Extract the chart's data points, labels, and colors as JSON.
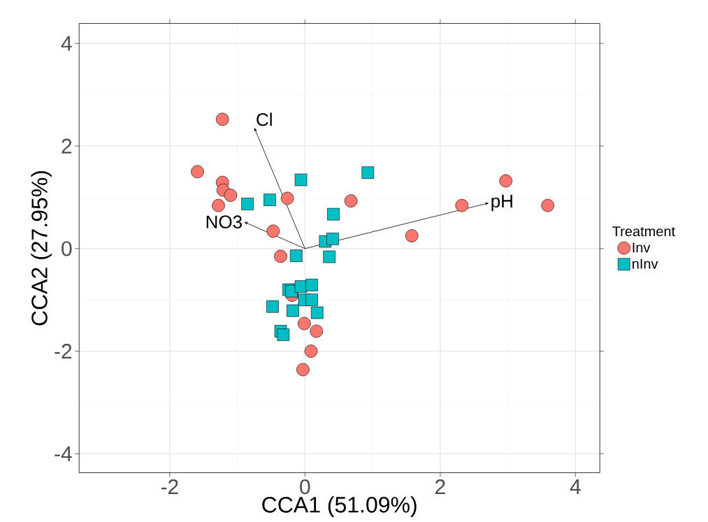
{
  "chart_data": {
    "type": "scatter",
    "xlabel": "CCA1 (51.09%)",
    "ylabel": "CCA2 (27.95%)",
    "legend_title": "Treatment",
    "xlim": [
      -3.34,
      4.36
    ],
    "ylim": [
      -4.37,
      4.39
    ],
    "xticks": [
      -2,
      0,
      2,
      4
    ],
    "yticks": [
      -4,
      -2,
      0,
      2,
      4
    ],
    "grid": true,
    "legend": "right",
    "series": [
      {
        "name": "Inv",
        "color": "#f8766d",
        "marker": "circle",
        "x": [
          -1.22,
          -1.59,
          -1.22,
          -1.21,
          -1.1,
          -1.28,
          -0.26,
          -0.47,
          -0.36,
          0.68,
          1.58,
          2.32,
          2.97,
          3.59,
          -0.19,
          -0.01,
          0.17,
          0.09,
          -0.03
        ],
        "values": [
          2.52,
          1.5,
          1.29,
          1.14,
          1.04,
          0.84,
          0.98,
          0.34,
          -0.15,
          0.93,
          0.25,
          0.84,
          1.32,
          0.84,
          -0.91,
          -1.46,
          -1.61,
          -2.0,
          -2.36
        ]
      },
      {
        "name": "nInv",
        "color": "#00bfc4",
        "marker": "square",
        "x": [
          -0.06,
          0.93,
          -0.85,
          -0.52,
          0.42,
          0.3,
          0.41,
          -0.13,
          0.36,
          -0.24,
          -0.2,
          -0.06,
          0.1,
          -0.01,
          0.1,
          -0.48,
          -0.18,
          0.18,
          -0.36,
          -0.32
        ],
        "values": [
          1.34,
          1.48,
          0.87,
          0.95,
          0.67,
          0.14,
          0.19,
          -0.14,
          -0.16,
          -0.8,
          -0.83,
          -0.74,
          -0.71,
          -1.0,
          -1.0,
          -1.13,
          -1.21,
          -1.25,
          -1.61,
          -1.68
        ]
      }
    ],
    "annotations": [
      "Cl",
      "NO3",
      "pH"
    ]
  }
}
